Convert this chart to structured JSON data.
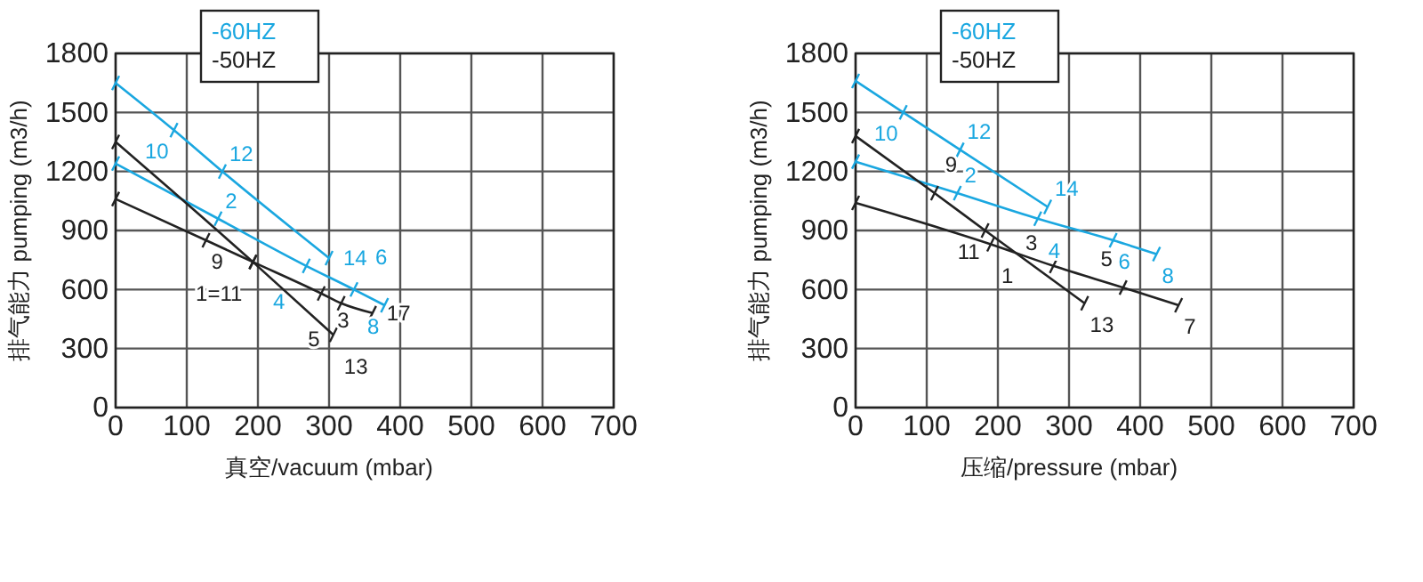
{
  "chart_data": [
    {
      "type": "line",
      "xlabel": "真空/vacuum (mbar)",
      "ylabel": "排气能力 pumping (m3/h)",
      "xlim": [
        0,
        700
      ],
      "xticks": [
        0,
        100,
        200,
        300,
        400,
        500,
        600,
        700
      ],
      "ylim": [
        0,
        1800
      ],
      "yticks": [
        0,
        300,
        600,
        900,
        1200,
        1500,
        1800
      ],
      "grid": true,
      "legend": "top left",
      "marker": "cross",
      "line_style": "solid",
      "series": [
        {
          "name": "-60HZ",
          "color": "#1aa7e0",
          "x": [
            0,
            82,
            150,
            300
          ],
          "values": [
            1650,
            1410,
            1200,
            760
          ]
        },
        {
          "color": "#1aa7e0",
          "x": [
            0,
            144,
            268,
            335,
            378
          ],
          "values": [
            1240,
            960,
            720,
            600,
            520
          ]
        },
        {
          "name": "-50HZ",
          "color": "#222222",
          "x": [
            0,
            193,
            306
          ],
          "values": [
            1350,
            740,
            370
          ]
        },
        {
          "color": "#222222",
          "x": [
            0,
            127,
            193,
            289,
            317,
            361
          ],
          "values": [
            1060,
            850,
            740,
            580,
            530,
            480
          ]
        }
      ],
      "annotations": [
        {
          "text": "10",
          "x": 82,
          "y": 1410
        },
        {
          "text": "12",
          "x": 150,
          "y": 1200
        },
        {
          "text": "14",
          "x": 300,
          "y": 760
        },
        {
          "text": "2",
          "x": 144,
          "y": 960
        },
        {
          "text": "4",
          "x": 268,
          "y": 720
        },
        {
          "text": "6",
          "x": 335,
          "y": 600
        },
        {
          "text": "8",
          "x": 378,
          "y": 520
        },
        {
          "text": "13",
          "x": 306,
          "y": 370
        },
        {
          "text": "9",
          "x": 127,
          "y": 850
        },
        {
          "text": "1=11",
          "x": 193,
          "y": 740
        },
        {
          "text": "3",
          "x": 289,
          "y": 580
        },
        {
          "text": "5",
          "x": 317,
          "y": 530
        },
        {
          "text": "17",
          "x": 361,
          "y": 480
        }
      ]
    },
    {
      "type": "line",
      "xlabel": "压缩/pressure (mbar)",
      "ylabel": "排气能力 pumping (m3/h)",
      "xlim": [
        0,
        700
      ],
      "xticks": [
        0,
        100,
        200,
        300,
        400,
        500,
        600,
        700
      ],
      "ylim": [
        0,
        1800
      ],
      "yticks": [
        0,
        300,
        600,
        900,
        1200,
        1500,
        1800
      ],
      "grid": true,
      "legend": "top left",
      "marker": "cross",
      "line_style": "solid",
      "series": [
        {
          "name": "-60HZ",
          "color": "#1aa7e0",
          "x": [
            0,
            67,
            147,
            270
          ],
          "values": [
            1660,
            1500,
            1310,
            1020
          ]
        },
        {
          "color": "#1aa7e0",
          "x": [
            0,
            143,
            256,
            362,
            423
          ],
          "values": [
            1250,
            1090,
            960,
            850,
            780
          ]
        },
        {
          "name": "-50HZ",
          "color": "#222222",
          "x": [
            0,
            111,
            182,
            322
          ],
          "values": [
            1380,
            1090,
            900,
            530
          ]
        },
        {
          "color": "#222222",
          "x": [
            0,
            190,
            278,
            376,
            454
          ],
          "values": [
            1040,
            830,
            720,
            610,
            520
          ]
        }
      ],
      "annotations": [
        {
          "text": "10",
          "x": 67,
          "y": 1500
        },
        {
          "text": "12",
          "x": 147,
          "y": 1310
        },
        {
          "text": "14",
          "x": 270,
          "y": 1020
        },
        {
          "text": "2",
          "x": 143,
          "y": 1090
        },
        {
          "text": "4",
          "x": 256,
          "y": 960
        },
        {
          "text": "6",
          "x": 362,
          "y": 850
        },
        {
          "text": "8",
          "x": 423,
          "y": 780
        },
        {
          "text": "9",
          "x": 111,
          "y": 1090
        },
        {
          "text": "11",
          "x": 182,
          "y": 900
        },
        {
          "text": "13",
          "x": 322,
          "y": 530
        },
        {
          "text": "1",
          "x": 190,
          "y": 830
        },
        {
          "text": "3",
          "x": 278,
          "y": 720
        },
        {
          "text": "5",
          "x": 376,
          "y": 610
        },
        {
          "text": "7",
          "x": 454,
          "y": 520
        }
      ]
    }
  ]
}
